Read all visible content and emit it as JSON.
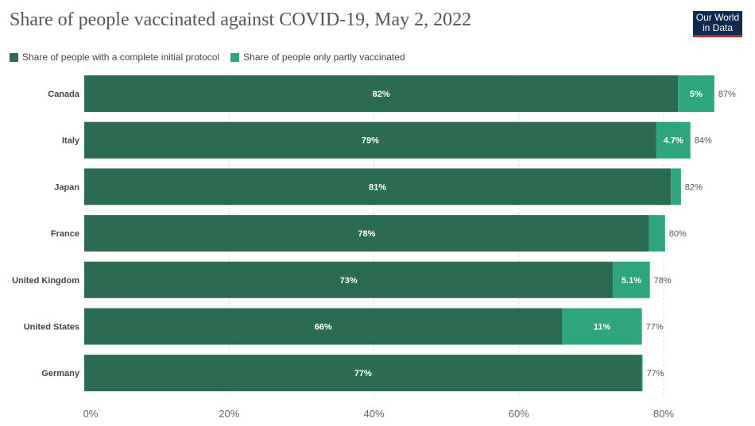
{
  "title": "Share of people vaccinated against COVID-19, May 2, 2022",
  "logo": {
    "line1": "Our World",
    "line2": "in Data"
  },
  "colors": {
    "complete": "#2a6b51",
    "partial": "#2ea57f"
  },
  "chart_data": {
    "type": "bar",
    "orientation": "horizontal",
    "stacked": true,
    "title": "Share of people vaccinated against COVID-19, May 2, 2022",
    "categories": [
      "Canada",
      "Italy",
      "Japan",
      "France",
      "United Kingdom",
      "United States",
      "Germany"
    ],
    "series": [
      {
        "name": "Share of people with a complete initial protocol",
        "values": [
          82,
          79,
          81,
          78,
          73,
          66,
          77
        ],
        "labels": [
          "82%",
          "79%",
          "81%",
          "78%",
          "73%",
          "66%",
          "77%"
        ]
      },
      {
        "name": "Share of people only partly vaccinated",
        "values": [
          5,
          4.7,
          1.4,
          2.2,
          5.1,
          11,
          0.1
        ],
        "labels": [
          "5%",
          "4.7%",
          "",
          "",
          "5.1%",
          "11%",
          ""
        ]
      }
    ],
    "totals": [
      "87%",
      "84%",
      "82%",
      "80%",
      "78%",
      "77%",
      "77%"
    ],
    "xticks": [
      0,
      20,
      40,
      60,
      80
    ],
    "xtick_labels": [
      "0%",
      "20%",
      "40%",
      "60%",
      "80%"
    ],
    "xlim": [
      0,
      87
    ],
    "grid": true,
    "legend": "top-left"
  }
}
